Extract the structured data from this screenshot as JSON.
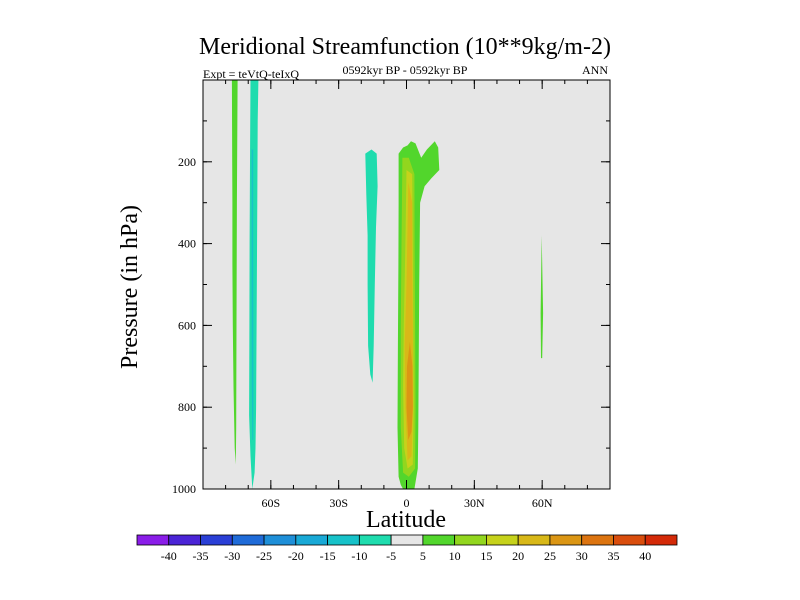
{
  "chart_data": {
    "type": "heatmap",
    "title": "Meridional Streamfunction (10**9kg/m-2)",
    "subtitle": "0592kyr BP - 0592kyr BP",
    "left_label": "Expt = teVtQ-teIxQ",
    "right_label": "ANN",
    "xlabel": "Latitude",
    "ylabel": "Pressure (in hPa)",
    "xlim": [
      -90,
      90
    ],
    "ylim": [
      1000,
      0
    ],
    "x_ticks": [
      {
        "value": -60,
        "label": "60S"
      },
      {
        "value": -30,
        "label": "30S"
      },
      {
        "value": 0,
        "label": "0"
      },
      {
        "value": 30,
        "label": "30N"
      },
      {
        "value": 60,
        "label": "60N"
      }
    ],
    "y_ticks": [
      {
        "value": 200,
        "label": "200"
      },
      {
        "value": 400,
        "label": "400"
      },
      {
        "value": 600,
        "label": "600"
      },
      {
        "value": 800,
        "label": "800"
      },
      {
        "value": 1000,
        "label": "1000"
      }
    ],
    "background_color": "#e6e6e6",
    "colorbar": {
      "labels": [
        "-40",
        "-35",
        "-30",
        "-25",
        "-20",
        "-15",
        "-10",
        "-5",
        "5",
        "10",
        "15",
        "20",
        "25",
        "30",
        "35",
        "40"
      ],
      "colors": [
        "#8a1de8",
        "#4b24d6",
        "#2a3fd6",
        "#1f6bd8",
        "#1e8fd8",
        "#19a9d6",
        "#17c2c9",
        "#1fdcae",
        "#e6e6e6",
        "#52d62c",
        "#92d61e",
        "#c6d21b",
        "#d8b818",
        "#db9614",
        "#dc7410",
        "#d94d0d",
        "#d42a08"
      ]
    },
    "regions": [
      {
        "name": "SH high-lat cell",
        "level": 5,
        "color": "#52d62c",
        "outline": [
          [
            -77.2,
            0
          ],
          [
            -74.7,
            0
          ],
          [
            -74.8,
            90
          ],
          [
            -75.0,
            300
          ],
          [
            -75.2,
            600
          ],
          [
            -75.3,
            850
          ],
          [
            -75.5,
            940
          ],
          [
            -76.0,
            900
          ],
          [
            -76.5,
            750
          ],
          [
            -76.8,
            600
          ],
          [
            -77.0,
            450
          ],
          [
            -77.0,
            300
          ],
          [
            -77.1,
            200
          ],
          [
            -77.2,
            0
          ]
        ]
      },
      {
        "name": "SH subpolar cell",
        "level": -5,
        "color": "#1fdcae",
        "outline": [
          [
            -69.0,
            0
          ],
          [
            -65.5,
            0
          ],
          [
            -65.8,
            100
          ],
          [
            -66.0,
            300
          ],
          [
            -66.3,
            600
          ],
          [
            -66.5,
            800
          ],
          [
            -66.8,
            900
          ],
          [
            -67.2,
            960
          ],
          [
            -68.2,
            1000
          ],
          [
            -69.0,
            920
          ],
          [
            -69.6,
            820
          ],
          [
            -69.5,
            600
          ],
          [
            -69.4,
            400
          ],
          [
            -69.2,
            200
          ],
          [
            -69.0,
            0
          ]
        ]
      },
      {
        "name": "SH subpolar core",
        "level": -10,
        "color": "#17c2c9",
        "outline": [
          [
            -68.5,
            170
          ],
          [
            -67.8,
            170
          ],
          [
            -67.8,
            450
          ],
          [
            -67.7,
            750
          ],
          [
            -67.8,
            880
          ],
          [
            -68.2,
            880
          ],
          [
            -68.4,
            750
          ],
          [
            -68.5,
            450
          ],
          [
            -68.5,
            170
          ]
        ]
      },
      {
        "name": "SH subtropical cell",
        "level": -5,
        "color": "#1fdcae",
        "outline": [
          [
            -18.2,
            180
          ],
          [
            -15.5,
            170
          ],
          [
            -13.2,
            180
          ],
          [
            -12.8,
            260
          ],
          [
            -13.5,
            360
          ],
          [
            -14.0,
            500
          ],
          [
            -14.5,
            650
          ],
          [
            -15.0,
            740
          ],
          [
            -16.0,
            720
          ],
          [
            -17.0,
            650
          ],
          [
            -17.2,
            500
          ],
          [
            -17.2,
            380
          ],
          [
            -17.8,
            280
          ],
          [
            -18.2,
            180
          ]
        ]
      },
      {
        "name": "Equatorial cell",
        "level": 5,
        "color": "#52d62c",
        "outline": [
          [
            -3.5,
            180
          ],
          [
            -1.5,
            165
          ],
          [
            0.5,
            160
          ],
          [
            2.0,
            150
          ],
          [
            4.0,
            155
          ],
          [
            6.5,
            190
          ],
          [
            9.0,
            170
          ],
          [
            12.5,
            150
          ],
          [
            14.0,
            165
          ],
          [
            14.5,
            220
          ],
          [
            11.0,
            240
          ],
          [
            8.0,
            260
          ],
          [
            6.0,
            300
          ],
          [
            5.6,
            500
          ],
          [
            5.4,
            700
          ],
          [
            5.2,
            850
          ],
          [
            5.0,
            950
          ],
          [
            3.5,
            1000
          ],
          [
            1.0,
            1010
          ],
          [
            -1.0,
            1005
          ],
          [
            -2.5,
            990
          ],
          [
            -3.5,
            970
          ],
          [
            -4.0,
            850
          ],
          [
            -3.8,
            650
          ],
          [
            -3.6,
            450
          ],
          [
            -3.5,
            300
          ],
          [
            -3.5,
            180
          ]
        ]
      },
      {
        "name": "Equatorial cell 10",
        "level": 10,
        "color": "#92d61e",
        "outline": [
          [
            -1.8,
            190
          ],
          [
            1.0,
            190
          ],
          [
            3.5,
            230
          ],
          [
            3.6,
            400
          ],
          [
            3.8,
            600
          ],
          [
            4.0,
            800
          ],
          [
            3.8,
            950
          ],
          [
            1.0,
            970
          ],
          [
            -1.5,
            960
          ],
          [
            -2.5,
            850
          ],
          [
            -2.5,
            600
          ],
          [
            -2.2,
            400
          ],
          [
            -1.8,
            190
          ]
        ]
      },
      {
        "name": "Equatorial cell 15",
        "level": 15,
        "color": "#c6d21b",
        "outline": [
          [
            0.0,
            220
          ],
          [
            2.5,
            230
          ],
          [
            2.8,
            400
          ],
          [
            3.0,
            600
          ],
          [
            3.2,
            800
          ],
          [
            2.8,
            940
          ],
          [
            0.5,
            950
          ],
          [
            -1.0,
            900
          ],
          [
            -1.5,
            750
          ],
          [
            -1.2,
            600
          ],
          [
            -0.5,
            400
          ],
          [
            0.0,
            220
          ]
        ]
      },
      {
        "name": "Equatorial cell 20",
        "level": 20,
        "color": "#d8b818",
        "outline": [
          [
            0.8,
            250
          ],
          [
            2.5,
            300
          ],
          [
            2.5,
            450
          ],
          [
            2.8,
            600
          ],
          [
            2.9,
            800
          ],
          [
            2.2,
            920
          ],
          [
            0.5,
            930
          ],
          [
            -0.5,
            800
          ],
          [
            -0.8,
            650
          ],
          [
            0.0,
            500
          ],
          [
            0.5,
            350
          ],
          [
            0.8,
            250
          ]
        ]
      },
      {
        "name": "Equatorial cell 25",
        "level": 25,
        "color": "#db9614",
        "outline": [
          [
            1.5,
            640
          ],
          [
            2.6,
            700
          ],
          [
            2.8,
            800
          ],
          [
            2.2,
            860
          ],
          [
            0.8,
            880
          ],
          [
            0.0,
            800
          ],
          [
            0.2,
            700
          ],
          [
            1.5,
            640
          ]
        ]
      },
      {
        "name": "NH high-lat patch",
        "level": 5,
        "color": "#52d62c",
        "outline": [
          [
            59.3,
            570
          ],
          [
            59.8,
            380
          ],
          [
            60.4,
            570
          ],
          [
            60.0,
            680
          ],
          [
            59.5,
            680
          ],
          [
            59.3,
            570
          ]
        ]
      }
    ]
  }
}
